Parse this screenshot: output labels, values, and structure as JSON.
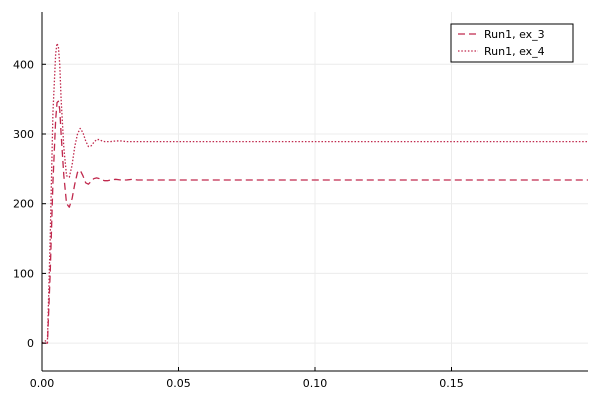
{
  "chart_data": {
    "type": "line",
    "title": "",
    "xlabel": "",
    "ylabel": "",
    "xlim": [
      0,
      0.2
    ],
    "ylim": [
      -40,
      475
    ],
    "xticks": [
      0.0,
      0.05,
      0.1,
      0.15
    ],
    "xtick_labels": [
      "0.00",
      "0.05",
      "0.10",
      "0.15"
    ],
    "yticks": [
      0,
      100,
      200,
      300,
      400
    ],
    "ytick_labels": [
      "0",
      "100",
      "200",
      "300",
      "400"
    ],
    "grid": true,
    "legend_position": "top-right",
    "series": [
      {
        "name": "Run1, ex_3",
        "color": "#c0294d",
        "style": "dashed",
        "x": [
          0,
          0.002,
          0.003,
          0.004,
          0.005,
          0.0055,
          0.006,
          0.0065,
          0.007,
          0.008,
          0.009,
          0.01,
          0.011,
          0.012,
          0.013,
          0.014,
          0.015,
          0.016,
          0.017,
          0.018,
          0.019,
          0.02,
          0.021,
          0.022,
          0.023,
          0.024,
          0.025,
          0.027,
          0.029,
          0.031,
          0.033,
          0.035,
          0.038,
          0.04,
          0.045,
          0.05,
          0.1,
          0.15,
          0.2
        ],
        "y": [
          0,
          0,
          100,
          230,
          320,
          345,
          347,
          335,
          300,
          240,
          200,
          195,
          207,
          228,
          245,
          248,
          240,
          230,
          228,
          232,
          236,
          237,
          236,
          234,
          233,
          233,
          234,
          235,
          234,
          234,
          235,
          234,
          234,
          234,
          234,
          234,
          234,
          234,
          234
        ]
      },
      {
        "name": "Run1, ex_4",
        "color": "#c0294d",
        "style": "dotted",
        "x": [
          0,
          0.002,
          0.003,
          0.004,
          0.005,
          0.0055,
          0.006,
          0.0065,
          0.007,
          0.008,
          0.009,
          0.01,
          0.011,
          0.012,
          0.013,
          0.014,
          0.015,
          0.016,
          0.017,
          0.018,
          0.019,
          0.02,
          0.021,
          0.022,
          0.023,
          0.024,
          0.025,
          0.027,
          0.029,
          0.031,
          0.033,
          0.035,
          0.038,
          0.04,
          0.045,
          0.05,
          0.1,
          0.15,
          0.2
        ],
        "y": [
          0,
          5,
          150,
          330,
          415,
          430,
          425,
          400,
          350,
          280,
          240,
          238,
          255,
          282,
          300,
          308,
          302,
          290,
          282,
          283,
          288,
          292,
          292,
          290,
          289,
          289,
          289,
          290,
          290,
          289,
          289,
          289,
          289,
          289,
          289,
          289,
          289,
          289,
          289
        ]
      }
    ]
  }
}
